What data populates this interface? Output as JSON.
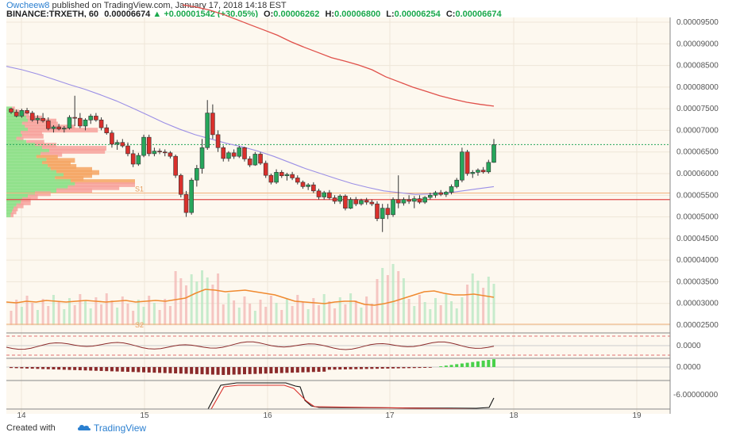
{
  "header": {
    "author": "Owcheew8",
    "published_text": "published on TradingView.com, January 17, 2018 14:18 EST",
    "symbol": "BINANCE:TRXETH, 60",
    "last_price": "0.00006674",
    "change": "+0.00001542 (+30.05%)",
    "open_label": "O:",
    "open": "0.00006262",
    "high_label": "H:",
    "high": "0.00006800",
    "low_label": "L:",
    "low": "0.00006254",
    "close_label": "C:",
    "close": "0.00006674"
  },
  "footer": {
    "created_with": "Created with",
    "brand": "TradingView"
  },
  "colors": {
    "up": "#26a65b",
    "down": "#d9302c",
    "background": "#fdf8ef",
    "ema_red": "#e0504a",
    "ema_purple": "#9b8fe6",
    "volume_ma": "#f08a30",
    "vp_up": "#8fe08a",
    "vp_down": "#f7a29c",
    "vp_orange": "#f5a562"
  },
  "chart_data": {
    "type": "candlestick",
    "annotations": [
      "S1",
      "S2"
    ],
    "x_tick_labels": [
      "14",
      "15",
      "16",
      "17",
      "18",
      "19"
    ],
    "y_tick_labels": [
      "0.00009500",
      "0.00009000",
      "0.00008500",
      "0.00008000",
      "0.00007500",
      "0.00007000",
      "0.00006500",
      "0.00006000",
      "0.00005500",
      "0.00005000",
      "0.00004500",
      "0.00004000",
      "0.00003500",
      "0.00003000",
      "0.00002500"
    ],
    "ylim": [
      2.3e-05,
      9.7e-05
    ],
    "indicator_labels": [
      "0.0000",
      "0.0000",
      "-6.00000000"
    ],
    "candles": [
      [
        7.5e-05,
        7.52e-05,
        7.38e-05,
        7.42e-05
      ],
      [
        7.42e-05,
        7.48e-05,
        7.3e-05,
        7.33e-05
      ],
      [
        7.33e-05,
        7.5e-05,
        7.29e-05,
        7.46e-05
      ],
      [
        7.46e-05,
        7.52e-05,
        7.38e-05,
        7.4e-05
      ],
      [
        7.4e-05,
        7.45e-05,
        7.2e-05,
        7.24e-05
      ],
      [
        7.24e-05,
        7.35e-05,
        7.15e-05,
        7.28e-05
      ],
      [
        7.28e-05,
        7.4e-05,
        7.18e-05,
        7.22e-05
      ],
      [
        7.22e-05,
        7.3e-05,
        7e-05,
        7.04e-05
      ],
      [
        7.04e-05,
        7.12e-05,
        6.95e-05,
        7.08e-05
      ],
      [
        7.08e-05,
        7.15e-05,
        7e-05,
        7.03e-05
      ],
      [
        7.03e-05,
        7.1e-05,
        6.95e-05,
        7.05e-05
      ],
      [
        7.05e-05,
        7.35e-05,
        7.02e-05,
        7.3e-05
      ],
      [
        7.3e-05,
        7.8e-05,
        7.1e-05,
        7.28e-05
      ],
      [
        7.28e-05,
        7.4e-05,
        7.05e-05,
        7.1e-05
      ],
      [
        7.1e-05,
        7.28e-05,
        7e-05,
        7.24e-05
      ],
      [
        7.24e-05,
        7.38e-05,
        7.15e-05,
        7.33e-05
      ],
      [
        7.33e-05,
        7.4e-05,
        7.2e-05,
        7.24e-05
      ],
      [
        7.24e-05,
        7.3e-05,
        7e-05,
        7.06e-05
      ],
      [
        7.06e-05,
        7.14e-05,
        6.9e-05,
        6.94e-05
      ],
      [
        6.94e-05,
        7e-05,
        6.6e-05,
        6.68e-05
      ],
      [
        6.68e-05,
        6.78e-05,
        6.55e-05,
        6.72e-05
      ],
      [
        6.72e-05,
        6.8e-05,
        6.6e-05,
        6.64e-05
      ],
      [
        6.64e-05,
        6.72e-05,
        6.4e-05,
        6.46e-05
      ],
      [
        6.46e-05,
        6.55e-05,
        6.15e-05,
        6.22e-05
      ],
      [
        6.22e-05,
        6.48e-05,
        6.18e-05,
        6.42e-05
      ],
      [
        6.42e-05,
        6.9e-05,
        6.38e-05,
        6.84e-05
      ],
      [
        6.84e-05,
        6.9e-05,
        6.4e-05,
        6.46e-05
      ],
      [
        6.46e-05,
        6.6e-05,
        6.4e-05,
        6.52e-05
      ],
      [
        6.52e-05,
        6.58e-05,
        6.45e-05,
        6.5e-05
      ],
      [
        6.5e-05,
        6.56e-05,
        6.4e-05,
        6.48e-05
      ],
      [
        6.48e-05,
        6.52e-05,
        6.35e-05,
        6.4e-05
      ],
      [
        6.4e-05,
        6.44e-05,
        5.9e-05,
        5.96e-05
      ],
      [
        5.96e-05,
        6e-05,
        5.45e-05,
        5.52e-05
      ],
      [
        5.52e-05,
        5.6e-05,
        5e-05,
        5.1e-05
      ],
      [
        5.1e-05,
        5.9e-05,
        5.05e-05,
        5.85e-05
      ],
      [
        5.85e-05,
        6.2e-05,
        5.7e-05,
        6.12e-05
      ],
      [
        6.12e-05,
        6.8e-05,
        6e-05,
        6.6e-05
      ],
      [
        6.6e-05,
        7.7e-05,
        6.55e-05,
        7.4e-05
      ],
      [
        7.4e-05,
        7.6e-05,
        6.8e-05,
        6.9e-05
      ],
      [
        6.9e-05,
        7e-05,
        6.5e-05,
        6.6e-05
      ],
      [
        6.6e-05,
        6.65e-05,
        6.28e-05,
        6.35e-05
      ],
      [
        6.35e-05,
        6.52e-05,
        6.28e-05,
        6.48e-05
      ],
      [
        6.48e-05,
        6.56e-05,
        6.34e-05,
        6.4e-05
      ],
      [
        6.4e-05,
        6.64e-05,
        6.36e-05,
        6.6e-05
      ],
      [
        6.6e-05,
        6.62e-05,
        6.28e-05,
        6.34e-05
      ],
      [
        6.34e-05,
        6.4e-05,
        6.15e-05,
        6.2e-05
      ],
      [
        6.2e-05,
        6.5e-05,
        6.18e-05,
        6.45e-05
      ],
      [
        6.45e-05,
        6.5e-05,
        6.2e-05,
        6.24e-05
      ],
      [
        6.24e-05,
        6.3e-05,
        5.9e-05,
        5.96e-05
      ],
      [
        5.96e-05,
        6e-05,
        5.75e-05,
        5.8e-05
      ],
      [
        5.8e-05,
        6.1e-05,
        5.76e-05,
        6.03e-05
      ],
      [
        6.03e-05,
        6.08e-05,
        5.9e-05,
        5.95e-05
      ],
      [
        5.95e-05,
        6.02e-05,
        5.84e-05,
        5.98e-05
      ],
      [
        5.98e-05,
        6.04e-05,
        5.85e-05,
        5.9e-05
      ],
      [
        5.9e-05,
        5.96e-05,
        5.75e-05,
        5.8e-05
      ],
      [
        5.8e-05,
        5.84e-05,
        5.65e-05,
        5.7e-05
      ],
      [
        5.7e-05,
        5.78e-05,
        5.62e-05,
        5.74e-05
      ],
      [
        5.74e-05,
        5.8e-05,
        5.55e-05,
        5.6e-05
      ],
      [
        5.6e-05,
        5.65e-05,
        5.4e-05,
        5.46e-05
      ],
      [
        5.46e-05,
        5.6e-05,
        5.4e-05,
        5.56e-05
      ],
      [
        5.56e-05,
        5.62e-05,
        5.4e-05,
        5.44e-05
      ],
      [
        5.44e-05,
        5.5e-05,
        5.3e-05,
        5.36e-05
      ],
      [
        5.36e-05,
        5.52e-05,
        5.3e-05,
        5.48e-05
      ],
      [
        5.48e-05,
        5.52e-05,
        5.15e-05,
        5.2e-05
      ],
      [
        5.2e-05,
        5.45e-05,
        5.18e-05,
        5.4e-05
      ],
      [
        5.4e-05,
        5.46e-05,
        5.25e-05,
        5.3e-05
      ],
      [
        5.3e-05,
        5.42e-05,
        5.26e-05,
        5.38e-05
      ],
      [
        5.38e-05,
        5.44e-05,
        5.28e-05,
        5.34e-05
      ],
      [
        5.34e-05,
        5.4e-05,
        5.25e-05,
        5.3e-05
      ],
      [
        5.3e-05,
        5.36e-05,
        4.9e-05,
        4.96e-05
      ],
      [
        4.96e-05,
        5.3e-05,
        4.65e-05,
        5.2e-05
      ],
      [
        5.2e-05,
        5.3e-05,
        4.95e-05,
        5.05e-05
      ],
      [
        5.05e-05,
        5.45e-05,
        5e-05,
        5.4e-05
      ],
      [
        5.4e-05,
        5.96e-05,
        5.2e-05,
        5.32e-05
      ],
      [
        5.32e-05,
        5.45e-05,
        5.26e-05,
        5.4e-05
      ],
      [
        5.4e-05,
        5.5e-05,
        5.3e-05,
        5.36e-05
      ],
      [
        5.36e-05,
        5.48e-05,
        5.2e-05,
        5.42e-05
      ],
      [
        5.42e-05,
        5.5e-05,
        5.3e-05,
        5.34e-05
      ],
      [
        5.34e-05,
        5.48e-05,
        5.3e-05,
        5.45e-05
      ],
      [
        5.45e-05,
        5.56e-05,
        5.4e-05,
        5.5e-05
      ],
      [
        5.5e-05,
        5.6e-05,
        5.44e-05,
        5.56e-05
      ],
      [
        5.56e-05,
        5.62e-05,
        5.48e-05,
        5.52e-05
      ],
      [
        5.52e-05,
        5.6e-05,
        5.46e-05,
        5.57e-05
      ],
      [
        5.57e-05,
        5.75e-05,
        5.52e-05,
        5.7e-05
      ],
      [
        5.7e-05,
        5.9e-05,
        5.66e-05,
        5.85e-05
      ],
      [
        5.85e-05,
        6.6e-05,
        5.8e-05,
        6.5e-05
      ],
      [
        6.5e-05,
        6.55e-05,
        5.95e-05,
        6e-05
      ],
      [
        6e-05,
        6.08e-05,
        5.9e-05,
        6.03e-05
      ],
      [
        6.03e-05,
        6.12e-05,
        5.95e-05,
        6.08e-05
      ],
      [
        6.08e-05,
        6.15e-05,
        6e-05,
        6.04e-05
      ],
      [
        6.04e-05,
        6.32e-05,
        6e-05,
        6.26e-05
      ],
      [
        6.26e-05,
        6.8e-05,
        6.25e-05,
        6.67e-05
      ]
    ],
    "ema_red": [
      9.9e-05,
      9.85e-05,
      9.78e-05,
      9.68e-05,
      9.56e-05,
      9.44e-05,
      9.32e-05,
      9.2e-05,
      9.05e-05,
      8.92e-05,
      8.8e-05,
      8.68e-05,
      8.6e-05,
      8.51e-05,
      8.4e-05,
      8.24e-05,
      8.12e-05,
      8e-05,
      7.9e-05,
      7.8e-05,
      7.72e-05,
      7.65e-05,
      7.6e-05,
      7.56e-05
    ],
    "ema_purple": [
      8.48e-05,
      8.4e-05,
      8.3e-05,
      8.18e-05,
      8.06e-05,
      7.95e-05,
      7.82e-05,
      7.68e-05,
      7.52e-05,
      7.35e-05,
      7.18e-05,
      7.03e-05,
      6.9e-05,
      6.8e-05,
      6.7e-05,
      6.62e-05,
      6.52e-05,
      6.4e-05,
      6.26e-05,
      6.12e-05,
      6e-05,
      5.88e-05,
      5.77e-05,
      5.68e-05,
      5.6e-05,
      5.56e-05,
      5.52e-05,
      5.53e-05,
      5.55e-05,
      5.6e-05,
      5.65e-05,
      5.7e-05
    ],
    "horizontal_levels": {
      "s1": 5.55e-05,
      "support_red": 5.4e-05,
      "last": 6.67e-05
    }
  }
}
